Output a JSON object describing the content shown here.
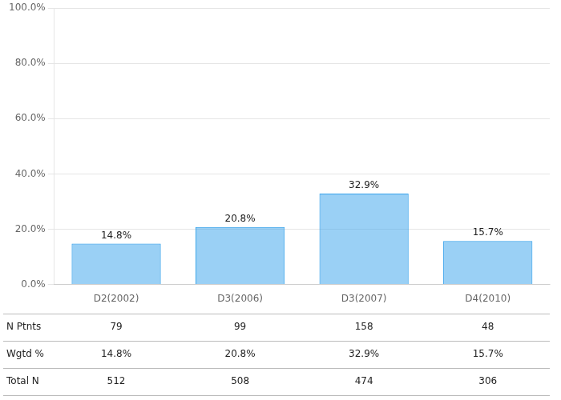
{
  "chart_data": {
    "type": "bar",
    "categories": [
      "D2(2002)",
      "D3(2006)",
      "D3(2007)",
      "D4(2010)"
    ],
    "values": [
      14.8,
      20.8,
      32.9,
      15.7
    ],
    "value_labels": [
      "14.8%",
      "20.8%",
      "32.9%",
      "15.7%"
    ],
    "data_labels": true,
    "ylim": [
      0,
      100
    ],
    "yticks": [
      {
        "value": 0,
        "label": "0.0%"
      },
      {
        "value": 20,
        "label": "20.0%"
      },
      {
        "value": 40,
        "label": "40.0%"
      },
      {
        "value": 60,
        "label": "60.0%"
      },
      {
        "value": 80,
        "label": "80.0%"
      },
      {
        "value": 100,
        "label": "100.0%"
      }
    ],
    "grid": true,
    "table": [
      {
        "label": "N Ptnts",
        "values": [
          79,
          99,
          158,
          48
        ]
      },
      {
        "label": "Wgtd %",
        "values": [
          14.8,
          20.8,
          32.9,
          15.7
        ],
        "value_labels": [
          "14.8%",
          "20.8%",
          "32.9%",
          "15.7%"
        ]
      },
      {
        "label": "Total N",
        "values": [
          512,
          508,
          474,
          306
        ]
      }
    ]
  }
}
